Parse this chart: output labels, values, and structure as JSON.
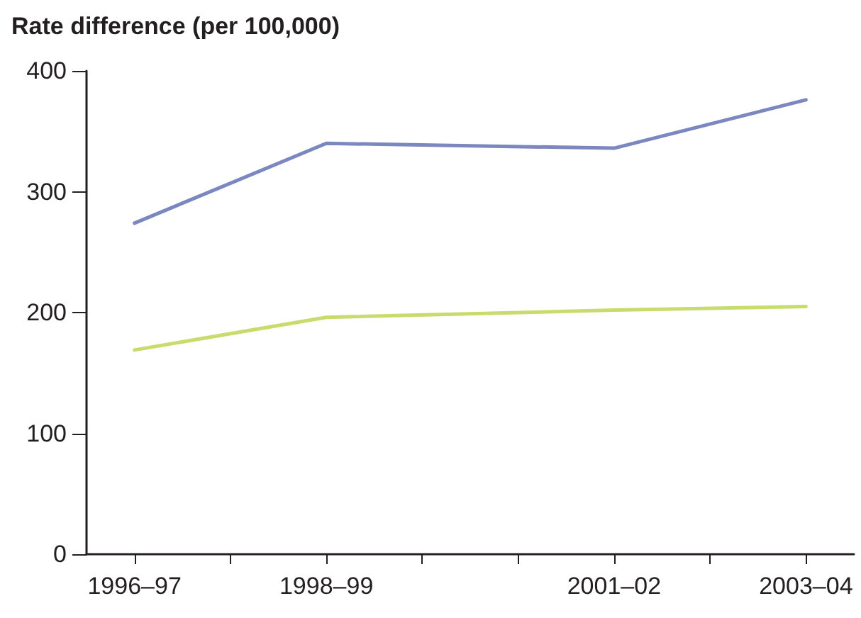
{
  "chart_data": {
    "type": "line",
    "ylabel": "Rate difference (per 100,000)",
    "categories": [
      "1996–97",
      null,
      "1998–99",
      null,
      null,
      "2001–02",
      null,
      "2003–04"
    ],
    "ylim": [
      0,
      400
    ],
    "yticks": [
      0,
      100,
      200,
      300,
      400
    ],
    "grid": false,
    "marker": "none",
    "line_style": "solid",
    "series": [
      {
        "color": "#7b88c0",
        "x": [
          "1996–97",
          "1998–99",
          "2001–02",
          "2003–04"
        ],
        "values": [
          274,
          340,
          336,
          376
        ]
      },
      {
        "color": "#c8dc6e",
        "x": [
          "1996–97",
          "1998–99",
          "2001–02",
          "2003–04"
        ],
        "values": [
          169,
          196,
          202,
          205
        ]
      }
    ]
  }
}
